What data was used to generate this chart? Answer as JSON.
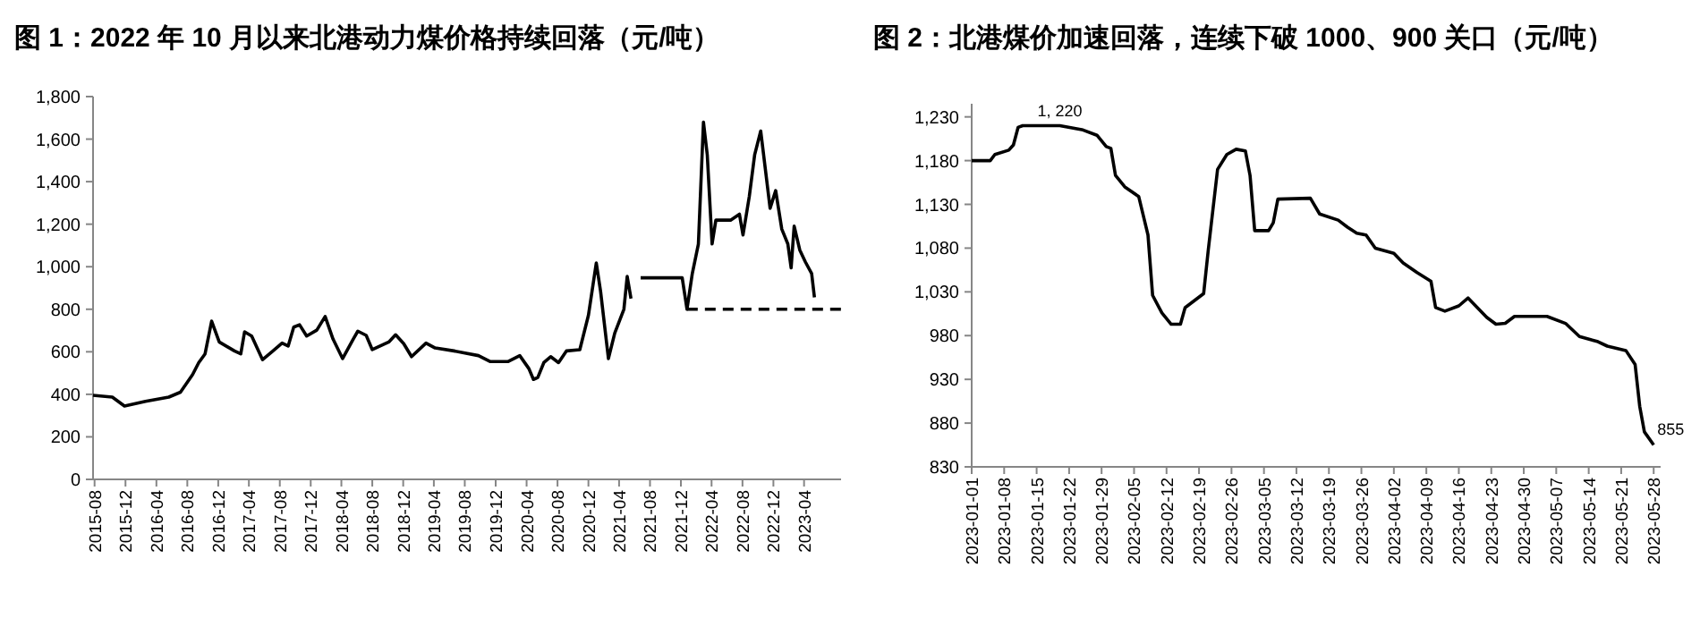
{
  "chart_data": [
    {
      "type": "line",
      "title": "图 1：2022 年 10 月以来北港动力煤价格持续回落（元/吨）",
      "xlim": [
        "2015-07-26",
        "2023-08-25"
      ],
      "xticks": [
        "2015-08",
        "2015-12",
        "2016-04",
        "2016-08",
        "2016-12",
        "2017-04",
        "2017-08",
        "2017-12",
        "2018-04",
        "2018-08",
        "2018-12",
        "2019-04",
        "2019-08",
        "2019-12",
        "2020-04",
        "2020-08",
        "2020-12",
        "2021-04",
        "2021-08",
        "2021-12",
        "2022-04",
        "2022-08",
        "2022-12",
        "2023-04"
      ],
      "ylim": [
        0,
        1800
      ],
      "yticks": [
        0,
        200,
        400,
        600,
        800,
        {
          "value": 1000,
          "label": "1,000"
        },
        {
          "value": 1200,
          "label": "1,200"
        },
        {
          "value": 1400,
          "label": "1,400"
        },
        {
          "value": 1600,
          "label": "1,600"
        },
        {
          "value": 1800,
          "label": "1,800"
        }
      ],
      "series": [
        {
          "color": "#000000",
          "x": [
            "2015-07-26",
            "2015-10-10",
            "2015-11-27",
            "2016-02-18",
            "2016-05-20",
            "2016-07-05",
            "2016-08-22",
            "2016-09-15",
            "2016-10-10",
            "2016-11-05",
            "2016-12-05",
            "2017-02-03",
            "2017-02-28",
            "2017-03-15",
            "2017-04-12",
            "2017-05-25",
            "2017-07-05",
            "2017-08-10",
            "2017-09-03",
            "2017-09-25",
            "2017-10-18",
            "2017-11-15",
            "2017-12-25",
            "2018-01-27",
            "2018-02-27",
            "2018-04-06",
            "2018-05-18",
            "2018-06-05",
            "2018-07-08",
            "2018-08-01",
            "2018-10-05",
            "2018-11-01",
            "2018-12-03",
            "2019-01-03",
            "2019-03-01",
            "2019-04-06",
            "2019-06-20",
            "2019-09-24",
            "2019-11-10",
            "2020-01-18",
            "2020-03-05",
            "2020-04-10",
            "2020-04-28",
            "2020-05-15",
            "2020-06-08",
            "2020-07-05",
            "2020-08-05",
            "2020-09-05",
            "2020-10-28",
            "2020-12-01",
            "2021-01-01",
            "2021-01-18",
            "2021-02-18",
            "2021-03-15",
            "2021-04-20",
            "2021-05-03",
            "2021-05-18"
          ],
          "values": [
            395,
            387,
            345,
            367,
            387,
            410,
            493,
            549,
            590,
            744,
            646,
            604,
            590,
            694,
            674,
            563,
            604,
            641,
            627,
            716,
            727,
            674,
            702,
            766,
            660,
            568,
            660,
            697,
            677,
            610,
            646,
            680,
            638,
            577,
            641,
            618,
            604,
            582,
            554,
            554,
            582,
            521,
            470,
            479,
            549,
            577,
            549,
            604,
            610,
            772,
            1018,
            884,
            568,
            688,
            800,
            954,
            850
          ]
        },
        {
          "color": "#000000",
          "x": [
            "2021-06-25",
            "2021-12-06",
            "2021-12-25",
            "2022-01-15",
            "2022-02-08",
            "2022-02-28",
            "2022-03-15",
            "2022-04-03",
            "2022-04-18",
            "2022-06-15",
            "2022-07-20",
            "2022-08-03",
            "2022-08-28",
            "2022-09-18",
            "2022-10-12",
            "2022-11-18",
            "2022-12-10",
            "2023-01-03",
            "2023-01-27",
            "2023-02-09",
            "2023-02-21",
            "2023-03-15",
            "2023-04-06",
            "2023-05-01",
            "2023-05-12"
          ],
          "values": [
            948,
            948,
            800,
            968,
            1107,
            1680,
            1526,
            1107,
            1219,
            1219,
            1247,
            1149,
            1331,
            1526,
            1638,
            1275,
            1358,
            1177,
            1107,
            995,
            1191,
            1079,
            1023,
            968,
            856
          ]
        },
        {
          "color": "#000000",
          "line_style": "dashed",
          "x": [
            "2021-12-25",
            "2023-08-25"
          ],
          "values": [
            800,
            800
          ]
        }
      ]
    },
    {
      "type": "line",
      "title": "图 2：北港煤价加速回落，连续下破 1000、900 关口（元/吨）",
      "xlim": [
        "2023-01-01",
        "2023-05-29T12:00"
      ],
      "xticks": [
        "2023-01-01",
        "2023-01-08",
        "2023-01-15",
        "2023-01-22",
        "2023-01-29",
        "2023-02-05",
        "2023-02-12",
        "2023-02-19",
        "2023-02-26",
        "2023-03-05",
        "2023-03-12",
        "2023-03-19",
        "2023-03-26",
        "2023-04-02",
        "2023-04-09",
        "2023-04-16",
        "2023-04-23",
        "2023-04-30",
        "2023-05-07",
        "2023-05-14",
        "2023-05-21",
        "2023-05-28"
      ],
      "ylim": [
        830,
        1245
      ],
      "annotations": [
        {
          "text": "1, 220",
          "x": "2023-01-20",
          "y": 1220
        }
      ],
      "yticks": [
        830,
        880,
        930,
        980,
        {
          "value": 1030,
          "label": "1,030"
        },
        {
          "value": 1080,
          "label": "1,080"
        },
        {
          "value": 1130,
          "label": "1,130"
        },
        {
          "value": 1180,
          "label": "1,180"
        },
        {
          "value": 1230,
          "label": "1,230"
        }
      ],
      "series": [
        {
          "color": "#000000",
          "x": [
            "2023-01-01",
            "2023-01-05",
            "2023-01-06",
            "2023-01-09",
            "2023-01-10",
            "2023-01-11",
            "2023-01-12",
            "2023-01-20",
            "2023-01-25",
            "2023-01-28",
            "2023-01-30",
            "2023-01-31",
            "2023-02-01",
            "2023-02-03",
            "2023-02-06",
            "2023-02-08",
            "2023-02-09",
            "2023-02-11",
            "2023-02-13",
            "2023-02-15",
            "2023-02-16",
            "2023-02-20",
            "2023-02-21",
            "2023-02-23",
            "2023-02-25",
            "2023-02-27",
            "2023-03-01",
            "2023-03-02",
            "2023-03-03",
            "2023-03-06",
            "2023-03-07",
            "2023-03-08",
            "2023-03-15",
            "2023-03-17",
            "2023-03-21",
            "2023-03-23",
            "2023-03-25",
            "2023-03-27",
            "2023-03-29",
            "2023-04-02",
            "2023-04-04",
            "2023-04-07",
            "2023-04-10",
            "2023-04-11",
            "2023-04-13",
            "2023-04-16",
            "2023-04-18",
            "2023-04-20",
            "2023-04-22",
            "2023-04-24",
            "2023-04-26",
            "2023-04-28",
            "2023-05-05",
            "2023-05-09",
            "2023-05-12",
            "2023-05-16",
            "2023-05-18",
            "2023-05-22",
            "2023-05-24",
            "2023-05-25",
            "2023-05-26",
            "2023-05-28"
          ],
          "values": [
            1180,
            1180,
            1187,
            1192,
            1198,
            1218,
            1220,
            1220,
            1215,
            1209,
            1196,
            1194,
            1163,
            1150,
            1139,
            1095,
            1026,
            1006,
            993,
            993,
            1012,
            1028,
            1078,
            1170,
            1187,
            1193,
            1191,
            1163,
            1100,
            1100,
            1109,
            1136,
            1137,
            1119,
            1112,
            1104,
            1097,
            1095,
            1080,
            1074,
            1063,
            1052,
            1042,
            1012,
            1008,
            1014,
            1023,
            1012,
            1001,
            993,
            994,
            1002,
            1002,
            994,
            979,
            973,
            968,
            963,
            947,
            899,
            870,
            855
          ],
          "value_labels": [
            null,
            null,
            null,
            null,
            null,
            null,
            null,
            null,
            null,
            null,
            null,
            null,
            null,
            null,
            null,
            null,
            null,
            null,
            null,
            null,
            null,
            null,
            null,
            null,
            null,
            null,
            null,
            null,
            null,
            null,
            null,
            null,
            null,
            null,
            null,
            null,
            null,
            null,
            null,
            null,
            null,
            null,
            null,
            null,
            null,
            null,
            null,
            null,
            null,
            null,
            null,
            null,
            null,
            null,
            null,
            null,
            null,
            null,
            null,
            null,
            null,
            "855"
          ]
        }
      ]
    }
  ]
}
